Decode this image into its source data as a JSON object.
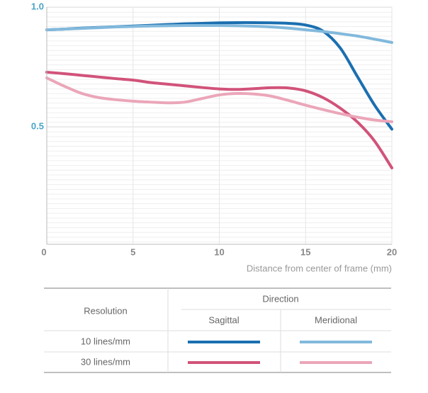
{
  "chart_data": {
    "type": "line",
    "x_label": "Distance from center of frame (mm)",
    "x": [
      0,
      1,
      2,
      3,
      4,
      5,
      6,
      7,
      8,
      9,
      10,
      11,
      12,
      13,
      14,
      15,
      16,
      17,
      18,
      19,
      20
    ],
    "xlim": [
      0,
      20
    ],
    "xticks": [
      0,
      5,
      10,
      15,
      20
    ],
    "ylim": [
      0,
      1
    ],
    "yticks": [
      {
        "value": 0.5,
        "label": "0.5"
      },
      {
        "value": 1,
        "label": "1.0"
      }
    ],
    "grid": true,
    "series": [
      {
        "color": "#1a6fb0",
        "values": [
          0.905,
          0.908,
          0.912,
          0.915,
          0.918,
          0.921,
          0.924,
          0.927,
          0.93,
          0.932,
          0.934,
          0.935,
          0.935,
          0.934,
          0.932,
          0.925,
          0.9,
          0.83,
          0.71,
          0.59,
          0.49
        ]
      },
      {
        "color": "#82b9dc",
        "values": [
          0.905,
          0.908,
          0.911,
          0.914,
          0.917,
          0.919,
          0.921,
          0.922,
          0.923,
          0.923,
          0.923,
          0.922,
          0.92,
          0.917,
          0.912,
          0.905,
          0.898,
          0.889,
          0.879,
          0.866,
          0.852
        ]
      },
      {
        "color": "#d1537a",
        "values": [
          0.728,
          0.722,
          0.715,
          0.708,
          0.701,
          0.695,
          0.685,
          0.678,
          0.671,
          0.664,
          0.658,
          0.656,
          0.659,
          0.663,
          0.662,
          0.65,
          0.622,
          0.578,
          0.52,
          0.44,
          0.328
        ]
      },
      {
        "color": "#eba6b9",
        "values": [
          0.704,
          0.67,
          0.64,
          0.622,
          0.613,
          0.607,
          0.603,
          0.6,
          0.603,
          0.618,
          0.633,
          0.639,
          0.637,
          0.628,
          0.61,
          0.59,
          0.572,
          0.555,
          0.54,
          0.528,
          0.521
        ]
      }
    ],
    "legend": {
      "row_header": "Resolution",
      "column_group": "Direction",
      "columns": [
        "Sagittal",
        "Meridional"
      ],
      "rows": [
        "10 lines/mm",
        "30 lines/mm"
      ]
    }
  }
}
